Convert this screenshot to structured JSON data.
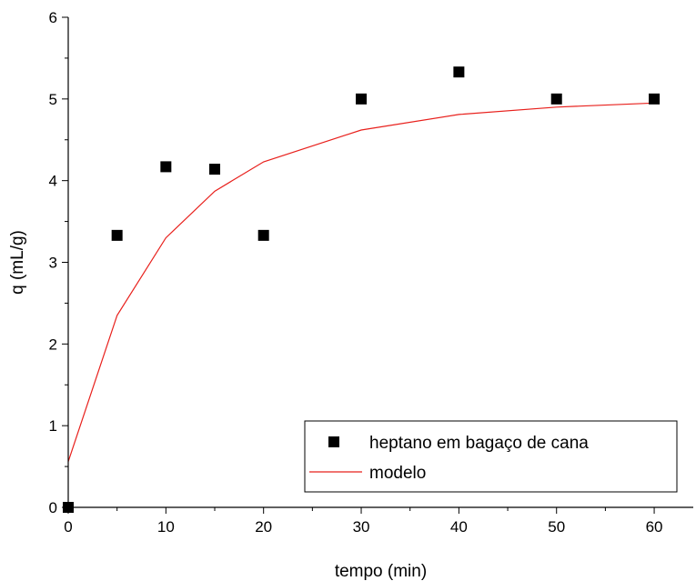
{
  "chart_data": {
    "type": "scatter",
    "title": "",
    "xlabel": "tempo (min)",
    "ylabel": "q (mL/g)",
    "xlim": [
      0,
      64
    ],
    "ylim": [
      0,
      6
    ],
    "xticks": [
      0,
      10,
      20,
      30,
      40,
      50,
      60
    ],
    "yticks": [
      0,
      1,
      2,
      3,
      4,
      5,
      6
    ],
    "grid": false,
    "legend_position": "bottom-right",
    "series": [
      {
        "name": "heptano em bagaço de cana",
        "kind": "scatter",
        "marker": "square",
        "color": "#000000",
        "x": [
          0,
          5,
          10,
          15,
          20,
          30,
          40,
          50,
          60
        ],
        "y": [
          0,
          3.33,
          4.17,
          4.14,
          3.33,
          5.0,
          5.33,
          5.0,
          5.0
        ]
      },
      {
        "name": "modelo",
        "kind": "line",
        "color": "#e8201c",
        "x": [
          0,
          5,
          10,
          15,
          20,
          30,
          40,
          50,
          60
        ],
        "y": [
          0.56,
          2.35,
          3.3,
          3.87,
          4.23,
          4.62,
          4.81,
          4.9,
          4.95
        ]
      }
    ]
  }
}
